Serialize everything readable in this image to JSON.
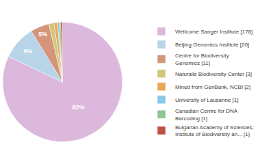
{
  "chart_data": {
    "type": "pie",
    "categories": [
      "Wellcome Sanger Institute [178]",
      "Beijing Genomics Institute [20]",
      "Centre for Biodiversity\nGenomics [11]",
      "Naturalis Biodiversity Center [3]",
      "Mined from GenBank, NCBI [2]",
      "University of Lausanne [1]",
      "Canadian Centre for DNA\nBarcoding [1]",
      "Bulgarian Academy of Sciences,\nInstitute of Biodiversity an... [1]"
    ],
    "values": [
      82.03,
      9.22,
      5.07,
      1.38,
      0.92,
      0.46,
      0.46,
      0.46
    ],
    "value_labels": [
      "82%",
      "9%",
      "5%",
      null,
      null,
      null,
      null,
      null
    ],
    "colors": [
      "#ddb8dd",
      "#b8d4e8",
      "#d4957a",
      "#cfc87a",
      "#e8a857",
      "#87c8eb",
      "#90c490",
      "#c05040"
    ],
    "data_labels": true,
    "legend": "right"
  }
}
